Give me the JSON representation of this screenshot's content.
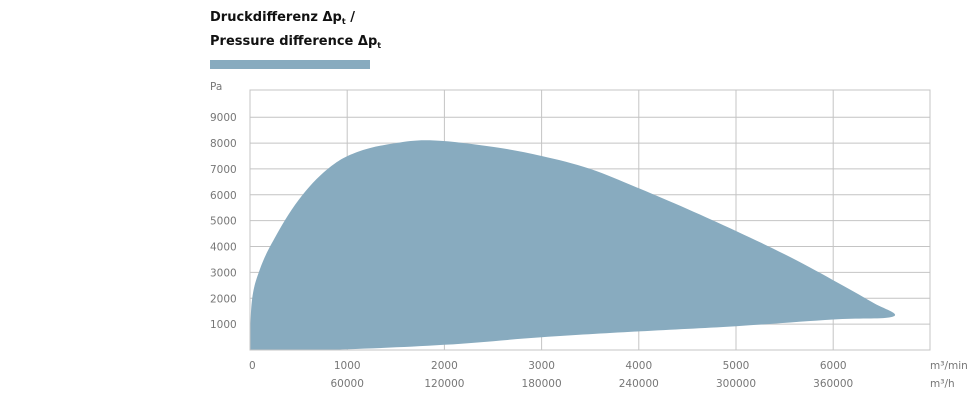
{
  "title": {
    "line1_main": "Druckdifferenz Δp",
    "line1_sub": "t",
    "line1_tail": " /",
    "line2_main": "Pressure difference Δp",
    "line2_sub": "t"
  },
  "colors": {
    "area": "#88abbf",
    "grid": "#c4c4c4",
    "axis_text": "#777777"
  },
  "chart_data": {
    "type": "area",
    "ylabel": "Pa",
    "x_unit": "m³/min",
    "x2_unit": "m³/h",
    "xlim": [
      0,
      7000
    ],
    "ylim": [
      0,
      9000
    ],
    "x_ticks": [
      "0",
      "1000",
      "2000",
      "3000",
      "4000",
      "5000",
      "6000"
    ],
    "x2_ticks": [
      "60000",
      "120000",
      "180000",
      "240000",
      "300000",
      "360000"
    ],
    "y_ticks": [
      "1000",
      "2000",
      "3000",
      "4000",
      "5000",
      "6000",
      "7000",
      "8000",
      "9000"
    ],
    "upper_boundary": [
      {
        "x": 0,
        "y": 0
      },
      {
        "x": 20,
        "y": 1900
      },
      {
        "x": 100,
        "y": 3100
      },
      {
        "x": 250,
        "y": 4300
      },
      {
        "x": 500,
        "y": 5800
      },
      {
        "x": 800,
        "y": 7000
      },
      {
        "x": 1100,
        "y": 7650
      },
      {
        "x": 1500,
        "y": 8000
      },
      {
        "x": 1900,
        "y": 8100
      },
      {
        "x": 2500,
        "y": 7850
      },
      {
        "x": 3000,
        "y": 7500
      },
      {
        "x": 3500,
        "y": 7000
      },
      {
        "x": 4000,
        "y": 6250
      },
      {
        "x": 4500,
        "y": 5450
      },
      {
        "x": 5000,
        "y": 4600
      },
      {
        "x": 5500,
        "y": 3700
      },
      {
        "x": 6000,
        "y": 2700
      },
      {
        "x": 6400,
        "y": 1850
      },
      {
        "x": 6620,
        "y": 1300
      }
    ],
    "lower_boundary": [
      {
        "x": 6620,
        "y": 1300
      },
      {
        "x": 6000,
        "y": 1180
      },
      {
        "x": 5000,
        "y": 920
      },
      {
        "x": 4000,
        "y": 720
      },
      {
        "x": 3000,
        "y": 490
      },
      {
        "x": 2000,
        "y": 200
      },
      {
        "x": 1000,
        "y": 30
      },
      {
        "x": 400,
        "y": 0
      },
      {
        "x": 0,
        "y": 0
      }
    ],
    "grid": true
  }
}
